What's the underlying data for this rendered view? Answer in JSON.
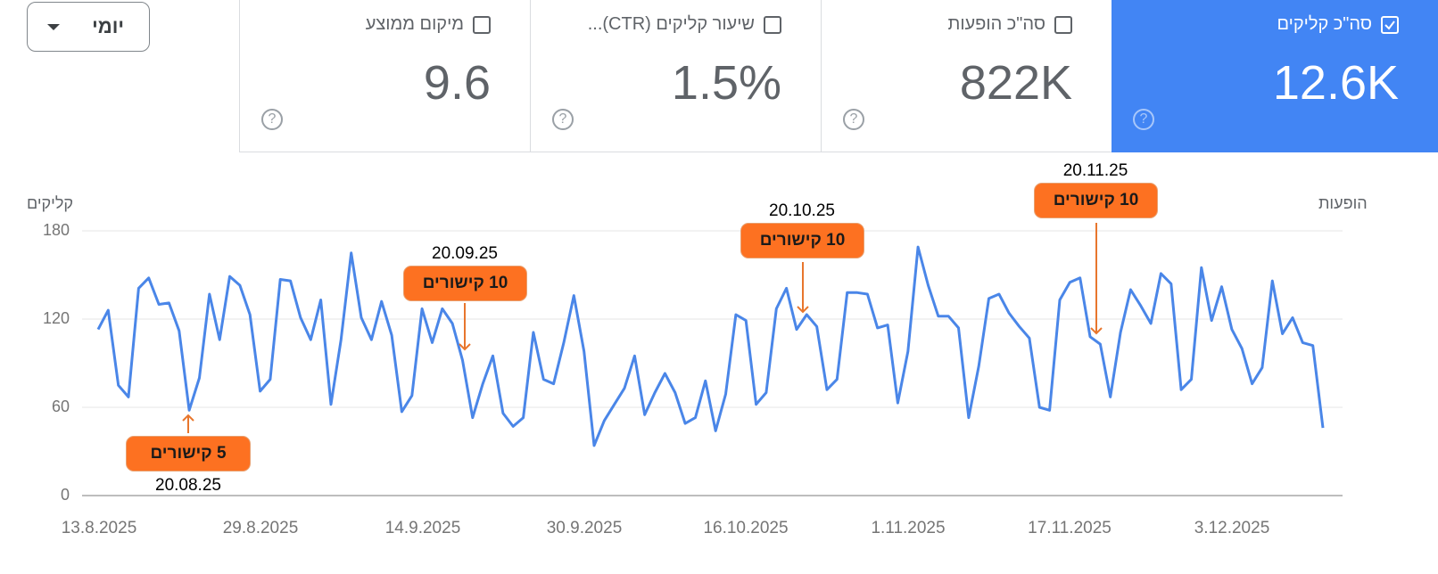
{
  "period_selector": {
    "label": "יומי"
  },
  "metric_cards": [
    {
      "label": "מיקום ממוצע",
      "value": "9.6",
      "checked": false
    },
    {
      "label": "שיעור קליקים (CTR)...",
      "value": "1.5%",
      "checked": false
    },
    {
      "label": "סה\"כ הופעות",
      "value": "822K",
      "checked": false
    },
    {
      "label": "סה\"כ קליקים",
      "value": "12.6K",
      "checked": true
    }
  ],
  "help_icon_glyph": "?",
  "colors": {
    "accent": "#4285f4",
    "line": "#4a86e8",
    "annotation": "#fd7121",
    "grid": "#eeeeee"
  },
  "chart_data": {
    "type": "line",
    "title": "",
    "ylabel_left": "קליקים",
    "ylabel_right": "הופעות",
    "ylim": [
      0,
      180
    ],
    "yticks": [
      "180",
      "120",
      "60",
      "0"
    ],
    "grid": true,
    "xticks": [
      "13.8.2025",
      "29.8.2025",
      "14.9.2025",
      "30.9.2025",
      "16.10.2025",
      "1.11.2025",
      "17.11.2025",
      "3.12.2025"
    ],
    "x_start": "13.8.2025",
    "series": [
      {
        "name": "קליקים",
        "values": [
          113,
          126,
          75,
          67,
          141,
          148,
          130,
          131,
          112,
          58,
          80,
          137,
          106,
          149,
          143,
          123,
          71,
          79,
          147,
          146,
          121,
          106,
          133,
          62,
          106,
          165,
          121,
          106,
          132,
          109,
          57,
          68,
          127,
          104,
          127,
          117,
          92,
          53,
          76,
          95,
          56,
          47,
          53,
          111,
          79,
          76,
          104,
          136,
          98,
          34,
          51,
          62,
          73,
          95,
          55,
          70,
          83,
          70,
          49,
          53,
          78,
          44,
          69,
          123,
          119,
          62,
          70,
          127,
          141,
          113,
          123,
          115,
          72,
          79,
          138,
          138,
          137,
          114,
          116,
          63,
          98,
          169,
          143,
          122,
          122,
          114,
          53,
          88,
          134,
          137,
          124,
          115,
          107,
          60,
          58,
          133,
          145,
          148,
          108,
          103,
          67,
          111,
          140,
          129,
          117,
          151,
          144,
          72,
          79,
          155,
          119,
          142,
          113,
          100,
          76,
          87,
          146,
          110,
          121,
          104,
          102,
          46
        ]
      }
    ],
    "annotations": [
      {
        "label": "5 קישורים",
        "date": "20.08.25"
      },
      {
        "label": "10 קישורים",
        "date": "20.09.25"
      },
      {
        "label": "10 קישורים",
        "date": "20.10.25"
      },
      {
        "label": "10 קישורים",
        "date": "20.11.25"
      }
    ]
  }
}
